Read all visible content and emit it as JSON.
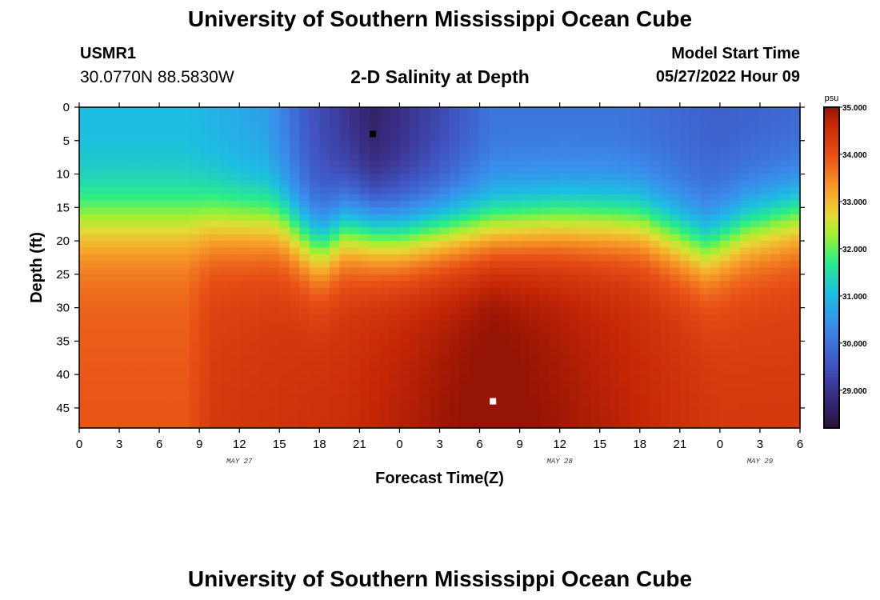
{
  "page": {
    "title": "University of Southern Mississippi Ocean Cube",
    "bottom_title": "University of Southern Mississippi Ocean Cube",
    "station_id": "USMR1",
    "station_coords": "30.0770N  88.5830W",
    "subtitle": "2-D Salinity at Depth",
    "model_start_label": "Model Start Time",
    "model_start_value": "05/27/2022 Hour 09"
  },
  "chart_data": {
    "type": "heatmap",
    "title": "2-D Salinity at Depth",
    "xlabel": "Forecast Time(Z)",
    "ylabel": "Depth (ft)",
    "x_ticks": [
      "0",
      "3",
      "6",
      "9",
      "12",
      "15",
      "18",
      "21",
      "0",
      "3",
      "6",
      "9",
      "12",
      "15",
      "18",
      "21",
      "0",
      "3",
      "6"
    ],
    "x_range_hours": [
      0,
      54
    ],
    "date_labels": [
      {
        "label": "MAY 27",
        "hour": 12
      },
      {
        "label": "MAY 28",
        "hour": 36
      },
      {
        "label": "MAY 29",
        "hour": 51
      }
    ],
    "y_ticks": [
      0,
      5,
      10,
      15,
      20,
      25,
      30,
      35,
      40,
      45
    ],
    "ylim": [
      0,
      48
    ],
    "y_inverted": true,
    "colorbar": {
      "unit": "psu",
      "min": 28.2,
      "max": 35.0,
      "ticks": [
        "35.000",
        "34.000",
        "33.000",
        "32.000",
        "31.000",
        "30.000",
        "29.000"
      ],
      "tick_values": [
        35,
        34,
        33,
        32,
        31,
        30,
        29
      ]
    },
    "markers": [
      {
        "name": "minimum",
        "hour": 22,
        "depth": 4,
        "color": "#000000"
      },
      {
        "name": "maximum",
        "hour": 31,
        "depth": 44,
        "color": "#ffffff"
      }
    ],
    "approx_fields": {
      "halocline_depth_by_hour": [
        [
          0,
          17
        ],
        [
          6,
          17
        ],
        [
          12,
          17
        ],
        [
          15,
          17
        ],
        [
          18,
          21
        ],
        [
          20,
          18
        ],
        [
          24,
          19
        ],
        [
          30,
          18
        ],
        [
          36,
          17
        ],
        [
          42,
          17
        ],
        [
          47,
          21
        ],
        [
          50,
          18
        ],
        [
          54,
          16
        ]
      ],
      "surface_salinity_by_hour": [
        [
          0,
          31.0
        ],
        [
          8,
          31.0
        ],
        [
          14,
          30.6
        ],
        [
          17,
          29.6
        ],
        [
          22,
          28.6
        ],
        [
          27,
          29.3
        ],
        [
          31,
          30.0
        ],
        [
          40,
          30.0
        ],
        [
          48,
          29.7
        ],
        [
          54,
          29.8
        ]
      ],
      "bottom_salinity_by_hour": [
        [
          0,
          33.8
        ],
        [
          8,
          33.8
        ],
        [
          10,
          34.2
        ],
        [
          20,
          34.4
        ],
        [
          31,
          35.0
        ],
        [
          40,
          34.6
        ],
        [
          48,
          34.2
        ],
        [
          54,
          34.2
        ]
      ]
    }
  }
}
